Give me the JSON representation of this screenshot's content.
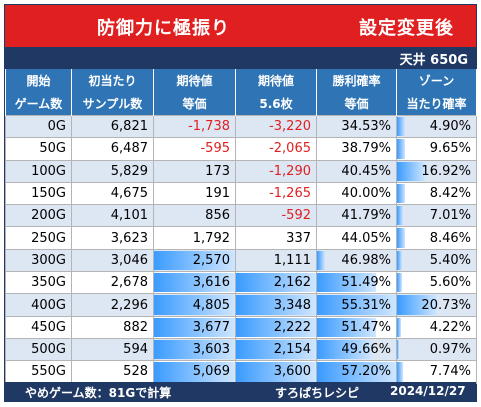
{
  "title": {
    "left": "防御力に極振り",
    "right": "設定変更後"
  },
  "ceiling": "天井 650G",
  "headers": [
    [
      "開始",
      "ゲーム数"
    ],
    [
      "初当たり",
      "サンプル数"
    ],
    [
      "期待値",
      "等価"
    ],
    [
      "期待値",
      "5.6枚"
    ],
    [
      "勝利確率",
      "等価"
    ],
    [
      "ゾーン",
      "当たり確率"
    ]
  ],
  "rows": [
    {
      "start": "0G",
      "samples": "6,821",
      "ev_eq": "-1,738",
      "ev_56": "-3,220",
      "win": "34.53%",
      "zone": "4.90%",
      "ev_eq_bar": 0,
      "ev_56_bar": 0,
      "win_bar": 0,
      "zone_bar": 0.1
    },
    {
      "start": "50G",
      "samples": "6,487",
      "ev_eq": "-595",
      "ev_56": "-2,065",
      "win": "38.79%",
      "zone": "9.65%",
      "ev_eq_bar": 0,
      "ev_56_bar": 0,
      "win_bar": 0,
      "zone_bar": 0.1
    },
    {
      "start": "100G",
      "samples": "5,829",
      "ev_eq": "173",
      "ev_56": "-1,290",
      "win": "40.45%",
      "zone": "16.92%",
      "ev_eq_bar": 0,
      "ev_56_bar": 0,
      "win_bar": 0,
      "zone_bar": 0.35
    },
    {
      "start": "150G",
      "samples": "4,675",
      "ev_eq": "191",
      "ev_56": "-1,265",
      "win": "40.00%",
      "zone": "8.42%",
      "ev_eq_bar": 0,
      "ev_56_bar": 0,
      "win_bar": 0,
      "zone_bar": 0.1
    },
    {
      "start": "200G",
      "samples": "4,101",
      "ev_eq": "856",
      "ev_56": "-592",
      "win": "41.79%",
      "zone": "7.01%",
      "ev_eq_bar": 0,
      "ev_56_bar": 0,
      "win_bar": 0,
      "zone_bar": 0.08
    },
    {
      "start": "250G",
      "samples": "3,623",
      "ev_eq": "1,792",
      "ev_56": "337",
      "win": "44.05%",
      "zone": "8.46%",
      "ev_eq_bar": 0,
      "ev_56_bar": 0,
      "win_bar": 0,
      "zone_bar": 0.1
    },
    {
      "start": "300G",
      "samples": "3,046",
      "ev_eq": "2,570",
      "ev_56": "1,111",
      "win": "46.98%",
      "zone": "5.40%",
      "ev_eq_bar": 1.0,
      "ev_56_bar": 0,
      "win_bar": 0.1,
      "zone_bar": 0.06
    },
    {
      "start": "350G",
      "samples": "2,678",
      "ev_eq": "3,616",
      "ev_56": "2,162",
      "win": "51.49%",
      "zone": "5.60%",
      "ev_eq_bar": 1.0,
      "ev_56_bar": 1.0,
      "win_bar": 0.75,
      "zone_bar": 0.06
    },
    {
      "start": "400G",
      "samples": "2,296",
      "ev_eq": "4,805",
      "ev_56": "3,348",
      "win": "55.31%",
      "zone": "20.73%",
      "ev_eq_bar": 1.0,
      "ev_56_bar": 1.0,
      "win_bar": 1.0,
      "zone_bar": 0.5
    },
    {
      "start": "450G",
      "samples": "882",
      "ev_eq": "3,677",
      "ev_56": "2,222",
      "win": "51.47%",
      "zone": "4.22%",
      "ev_eq_bar": 1.0,
      "ev_56_bar": 1.0,
      "win_bar": 0.75,
      "zone_bar": 0.05
    },
    {
      "start": "500G",
      "samples": "594",
      "ev_eq": "3,603",
      "ev_56": "2,154",
      "win": "49.66%",
      "zone": "0.97%",
      "ev_eq_bar": 1.0,
      "ev_56_bar": 1.0,
      "win_bar": 0.7,
      "zone_bar": 0.02
    },
    {
      "start": "550G",
      "samples": "528",
      "ev_eq": "5,069",
      "ev_56": "3,600",
      "win": "57.20%",
      "zone": "7.74%",
      "ev_eq_bar": 1.0,
      "ev_56_bar": 1.0,
      "win_bar": 1.0,
      "zone_bar": 0.08
    }
  ],
  "footer": {
    "left": "やめゲーム数：81Gで計算",
    "mid": "すろぱちレシピ",
    "right": "2024/12/27"
  },
  "colors": {
    "title_bg": "#e02020",
    "header_bg": "#2f75b5",
    "dark_bar": "#203864",
    "negative": "#e02020",
    "bar": "#3a9bff"
  }
}
